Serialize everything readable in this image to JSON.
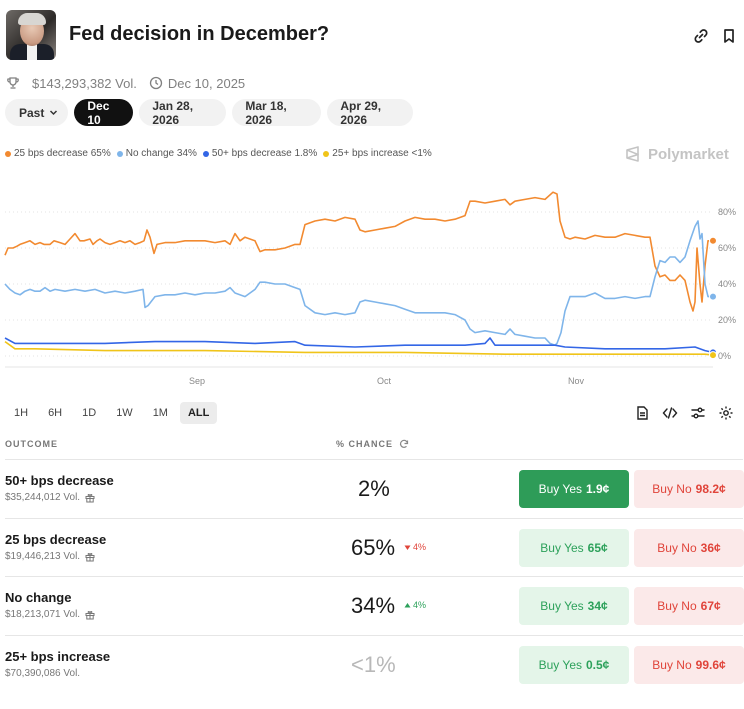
{
  "header": {
    "title": "Fed decision in December?",
    "avatar_icon": "person-portrait",
    "link_icon": "link-icon",
    "bookmark_icon": "bookmark-icon"
  },
  "meta": {
    "volume": "$143,293,382 Vol.",
    "end_date": "Dec 10, 2025"
  },
  "date_tabs": {
    "past_label": "Past",
    "tabs": [
      "Dec 10",
      "Jan 28, 2026",
      "Mar 18, 2026",
      "Apr 29, 2026"
    ],
    "active": "Dec 10"
  },
  "legend": [
    {
      "label": "25 bps decrease 65%",
      "color": "#f28a30"
    },
    {
      "label": "No change 34%",
      "color": "#7fb5ea"
    },
    {
      "label": "50+ bps decrease 1.8%",
      "color": "#3366e6"
    },
    {
      "label": "25+ bps increase <1%",
      "color": "#f0c419"
    }
  ],
  "brand": "Polymarket",
  "chart_data": {
    "type": "line",
    "x_ticks": [
      "Sep",
      "Oct",
      "Nov"
    ],
    "y_ticks": [
      "80%",
      "60%",
      "40%",
      "20%",
      "0%"
    ],
    "ylim": [
      0,
      100
    ],
    "y_axis_side": "right",
    "grid": "horizontal dotted",
    "series": [
      {
        "name": "25 bps decrease",
        "color": "#f28a30",
        "points": [
          [
            0,
            56
          ],
          [
            3,
            60
          ],
          [
            8,
            60
          ],
          [
            12,
            61
          ],
          [
            15,
            62
          ],
          [
            20,
            63
          ],
          [
            25,
            64
          ],
          [
            30,
            62
          ],
          [
            35,
            63
          ],
          [
            39,
            62
          ],
          [
            45,
            62
          ],
          [
            49,
            64
          ],
          [
            55,
            63
          ],
          [
            60,
            62
          ],
          [
            65,
            65
          ],
          [
            70,
            68
          ],
          [
            75,
            64
          ],
          [
            79,
            64
          ],
          [
            85,
            65
          ],
          [
            88,
            62
          ],
          [
            92,
            64
          ],
          [
            95,
            65
          ],
          [
            100,
            63
          ],
          [
            105,
            62
          ],
          [
            110,
            63
          ],
          [
            115,
            64
          ],
          [
            120,
            63
          ],
          [
            125,
            64
          ],
          [
            130,
            62
          ],
          [
            135,
            63
          ],
          [
            139,
            64
          ],
          [
            142,
            70
          ],
          [
            145,
            66
          ],
          [
            149,
            57
          ],
          [
            152,
            62
          ],
          [
            160,
            63
          ],
          [
            170,
            63
          ],
          [
            180,
            64
          ],
          [
            190,
            64
          ],
          [
            200,
            64
          ],
          [
            210,
            63
          ],
          [
            220,
            64
          ],
          [
            225,
            62
          ],
          [
            230,
            68
          ],
          [
            235,
            64
          ],
          [
            240,
            66
          ],
          [
            250,
            64
          ],
          [
            255,
            58
          ],
          [
            260,
            59
          ],
          [
            270,
            59
          ],
          [
            280,
            60
          ],
          [
            290,
            62
          ],
          [
            295,
            62
          ],
          [
            300,
            73
          ],
          [
            310,
            75
          ],
          [
            320,
            76
          ],
          [
            330,
            75
          ],
          [
            340,
            77
          ],
          [
            350,
            76
          ],
          [
            355,
            70
          ],
          [
            360,
            69
          ],
          [
            370,
            70
          ],
          [
            380,
            71
          ],
          [
            390,
            72
          ],
          [
            400,
            75
          ],
          [
            410,
            77
          ],
          [
            420,
            76
          ],
          [
            430,
            76
          ],
          [
            440,
            75
          ],
          [
            450,
            76
          ],
          [
            460,
            78
          ],
          [
            465,
            86
          ],
          [
            470,
            86
          ],
          [
            480,
            85
          ],
          [
            490,
            86
          ],
          [
            500,
            87
          ],
          [
            505,
            84
          ],
          [
            510,
            86
          ],
          [
            520,
            87
          ],
          [
            530,
            88
          ],
          [
            540,
            87
          ],
          [
            548,
            91
          ],
          [
            552,
            90
          ],
          [
            555,
            75
          ],
          [
            560,
            66
          ],
          [
            565,
            65
          ],
          [
            570,
            66
          ],
          [
            580,
            65
          ],
          [
            590,
            67
          ],
          [
            600,
            66
          ],
          [
            610,
            66
          ],
          [
            620,
            68
          ],
          [
            630,
            67
          ],
          [
            640,
            66
          ],
          [
            645,
            66
          ],
          [
            650,
            50
          ],
          [
            655,
            44
          ],
          [
            660,
            45
          ],
          [
            665,
            42
          ],
          [
            670,
            42
          ],
          [
            675,
            45
          ],
          [
            680,
            42
          ],
          [
            685,
            30
          ],
          [
            688,
            25
          ],
          [
            690,
            30
          ],
          [
            692,
            60
          ],
          [
            695,
            40
          ],
          [
            697,
            30
          ],
          [
            700,
            50
          ],
          [
            703,
            64
          ],
          [
            708,
            64
          ]
        ]
      },
      {
        "name": "No change",
        "color": "#7fb5ea",
        "points": [
          [
            0,
            40
          ],
          [
            5,
            37
          ],
          [
            10,
            35
          ],
          [
            15,
            34
          ],
          [
            20,
            36
          ],
          [
            25,
            37
          ],
          [
            30,
            36
          ],
          [
            35,
            36
          ],
          [
            40,
            38
          ],
          [
            45,
            36
          ],
          [
            50,
            37
          ],
          [
            60,
            36
          ],
          [
            70,
            37
          ],
          [
            80,
            36
          ],
          [
            90,
            37
          ],
          [
            100,
            35
          ],
          [
            110,
            36
          ],
          [
            120,
            35
          ],
          [
            130,
            36
          ],
          [
            138,
            37
          ],
          [
            140,
            27
          ],
          [
            143,
            28
          ],
          [
            150,
            33
          ],
          [
            160,
            34
          ],
          [
            170,
            34
          ],
          [
            180,
            35
          ],
          [
            190,
            34
          ],
          [
            200,
            35
          ],
          [
            210,
            35
          ],
          [
            220,
            36
          ],
          [
            225,
            38
          ],
          [
            230,
            35
          ],
          [
            240,
            33
          ],
          [
            250,
            37
          ],
          [
            255,
            41
          ],
          [
            260,
            41
          ],
          [
            270,
            40
          ],
          [
            280,
            40
          ],
          [
            290,
            38
          ],
          [
            295,
            37
          ],
          [
            300,
            28
          ],
          [
            310,
            24
          ],
          [
            320,
            23
          ],
          [
            330,
            24
          ],
          [
            340,
            23
          ],
          [
            350,
            24
          ],
          [
            355,
            30
          ],
          [
            360,
            31
          ],
          [
            370,
            30
          ],
          [
            380,
            29
          ],
          [
            390,
            28
          ],
          [
            400,
            26
          ],
          [
            410,
            24
          ],
          [
            420,
            24
          ],
          [
            430,
            24
          ],
          [
            440,
            24
          ],
          [
            450,
            23
          ],
          [
            460,
            20
          ],
          [
            465,
            15
          ],
          [
            470,
            13
          ],
          [
            480,
            14
          ],
          [
            490,
            13
          ],
          [
            500,
            12
          ],
          [
            505,
            15
          ],
          [
            510,
            12
          ],
          [
            520,
            11
          ],
          [
            530,
            10
          ],
          [
            540,
            10
          ],
          [
            545,
            7
          ],
          [
            550,
            6
          ],
          [
            552,
            7
          ],
          [
            556,
            13
          ],
          [
            560,
            25
          ],
          [
            565,
            33
          ],
          [
            570,
            33
          ],
          [
            580,
            33
          ],
          [
            590,
            35
          ],
          [
            600,
            32
          ],
          [
            610,
            32
          ],
          [
            620,
            33
          ],
          [
            630,
            32
          ],
          [
            640,
            33
          ],
          [
            645,
            33
          ],
          [
            650,
            44
          ],
          [
            655,
            53
          ],
          [
            660,
            52
          ],
          [
            665,
            55
          ],
          [
            670,
            55
          ],
          [
            675,
            52
          ],
          [
            680,
            55
          ],
          [
            685,
            64
          ],
          [
            690,
            72
          ],
          [
            693,
            75
          ],
          [
            695,
            65
          ],
          [
            697,
            68
          ],
          [
            700,
            40
          ],
          [
            703,
            33
          ],
          [
            708,
            33
          ]
        ]
      },
      {
        "name": "50+ bps decrease",
        "color": "#3366e6",
        "points": [
          [
            0,
            10
          ],
          [
            10,
            7
          ],
          [
            30,
            7
          ],
          [
            60,
            7
          ],
          [
            100,
            7
          ],
          [
            150,
            8
          ],
          [
            200,
            8
          ],
          [
            250,
            7
          ],
          [
            290,
            8
          ],
          [
            300,
            6
          ],
          [
            350,
            5
          ],
          [
            400,
            6
          ],
          [
            440,
            6
          ],
          [
            460,
            6
          ],
          [
            480,
            7
          ],
          [
            485,
            10
          ],
          [
            490,
            6
          ],
          [
            520,
            6
          ],
          [
            550,
            6
          ],
          [
            560,
            5
          ],
          [
            600,
            4
          ],
          [
            640,
            4
          ],
          [
            660,
            4
          ],
          [
            690,
            5
          ],
          [
            700,
            3
          ],
          [
            708,
            2
          ]
        ]
      },
      {
        "name": "25+ bps increase",
        "color": "#f0c419",
        "points": [
          [
            0,
            8
          ],
          [
            10,
            4
          ],
          [
            30,
            4
          ],
          [
            100,
            3
          ],
          [
            200,
            3
          ],
          [
            300,
            2
          ],
          [
            400,
            2
          ],
          [
            500,
            1
          ],
          [
            600,
            1
          ],
          [
            700,
            1
          ],
          [
            708,
            0.5
          ]
        ]
      }
    ]
  },
  "ranges": {
    "options": [
      "1H",
      "6H",
      "1D",
      "1W",
      "1M",
      "ALL"
    ],
    "active": "ALL"
  },
  "table": {
    "outcome_header": "OUTCOME",
    "chance_header": "% CHANCE",
    "rows": [
      {
        "name": "50+ bps decrease",
        "volume": "$35,244,012 Vol.",
        "chance": "2%",
        "change": "",
        "change_dir": "",
        "yes_label": "Buy Yes",
        "yes_price": "1.9¢",
        "no_label": "Buy No",
        "no_price": "98.2¢",
        "has_gift": true,
        "muted": false
      },
      {
        "name": "25 bps decrease",
        "volume": "$19,446,213 Vol.",
        "chance": "65%",
        "change": "4%",
        "change_dir": "down",
        "yes_label": "Buy Yes",
        "yes_price": "65¢",
        "no_label": "Buy No",
        "no_price": "36¢",
        "has_gift": true,
        "muted": false
      },
      {
        "name": "No change",
        "volume": "$18,213,071 Vol.",
        "chance": "34%",
        "change": "4%",
        "change_dir": "up",
        "yes_label": "Buy Yes",
        "yes_price": "34¢",
        "no_label": "Buy No",
        "no_price": "67¢",
        "has_gift": true,
        "muted": false
      },
      {
        "name": "25+ bps increase",
        "volume": "$70,390,086 Vol.",
        "chance": "<1%",
        "change": "",
        "change_dir": "",
        "yes_label": "Buy Yes",
        "yes_price": "0.5¢",
        "no_label": "Buy No",
        "no_price": "99.6¢",
        "has_gift": false,
        "muted": true
      }
    ]
  }
}
